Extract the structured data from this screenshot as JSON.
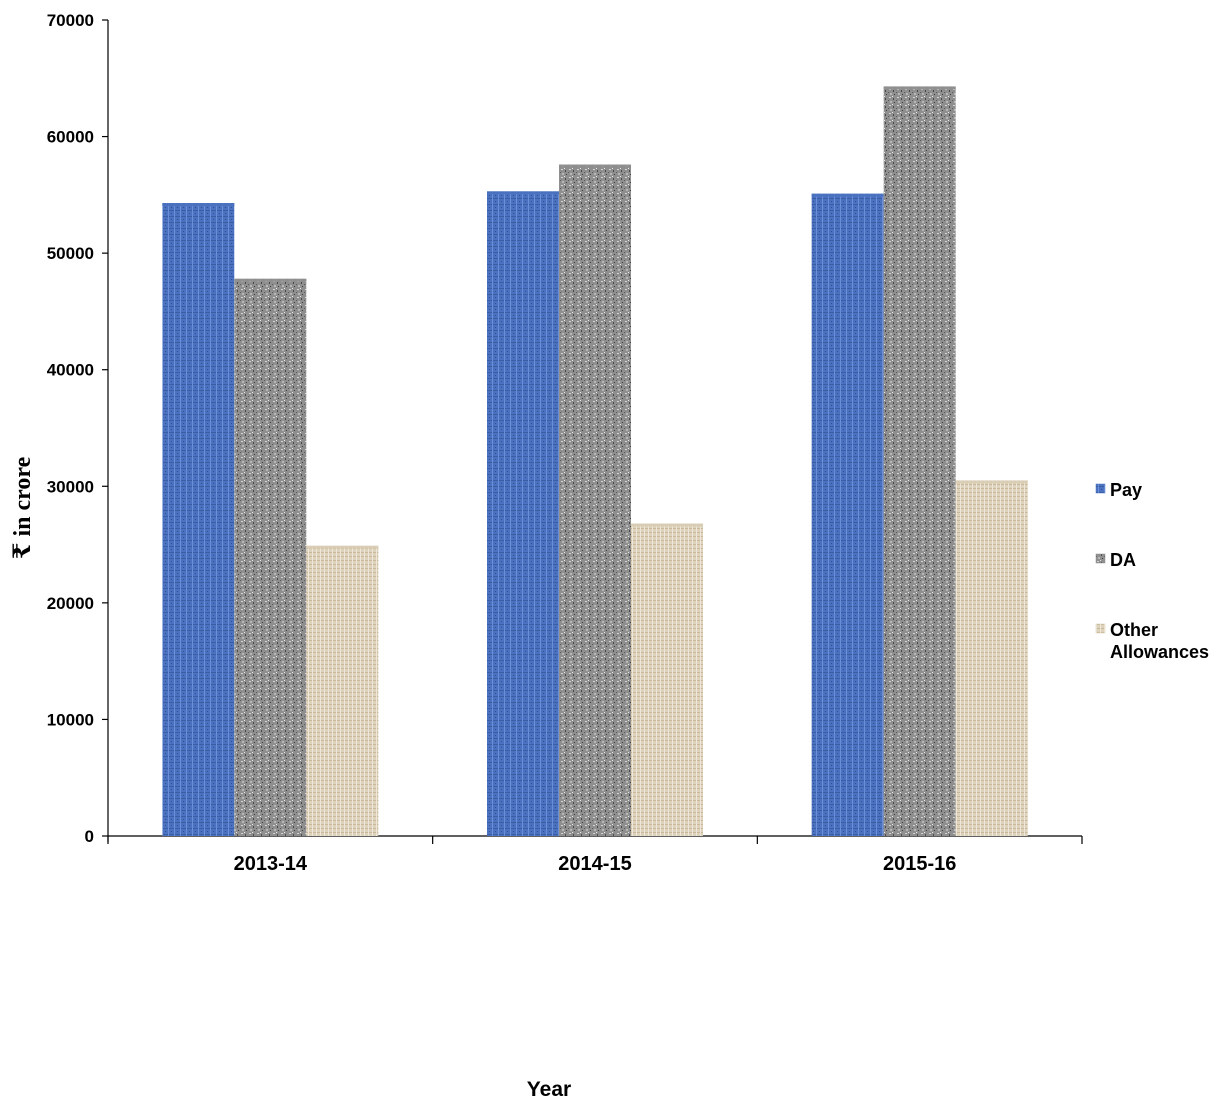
{
  "chart_data": {
    "type": "bar",
    "categories": [
      "2013-14",
      "2014-15",
      "2015-16"
    ],
    "series": [
      {
        "name": "Pay",
        "values": [
          54300,
          55300,
          55100
        ],
        "color": "#4a72c0"
      },
      {
        "name": "DA",
        "values": [
          47800,
          57600,
          64300
        ],
        "color": "#8f8f8f"
      },
      {
        "name": "Other Allowances",
        "values": [
          24900,
          26800,
          30500
        ],
        "color": "#d8ccb4"
      }
    ],
    "title": "",
    "xlabel": "Year",
    "ylabel": "₹ in crore",
    "ylim": [
      0,
      70000
    ],
    "yticks": [
      0,
      10000,
      20000,
      30000,
      40000,
      50000,
      60000,
      70000
    ],
    "grid": false,
    "legend_position": "right"
  }
}
